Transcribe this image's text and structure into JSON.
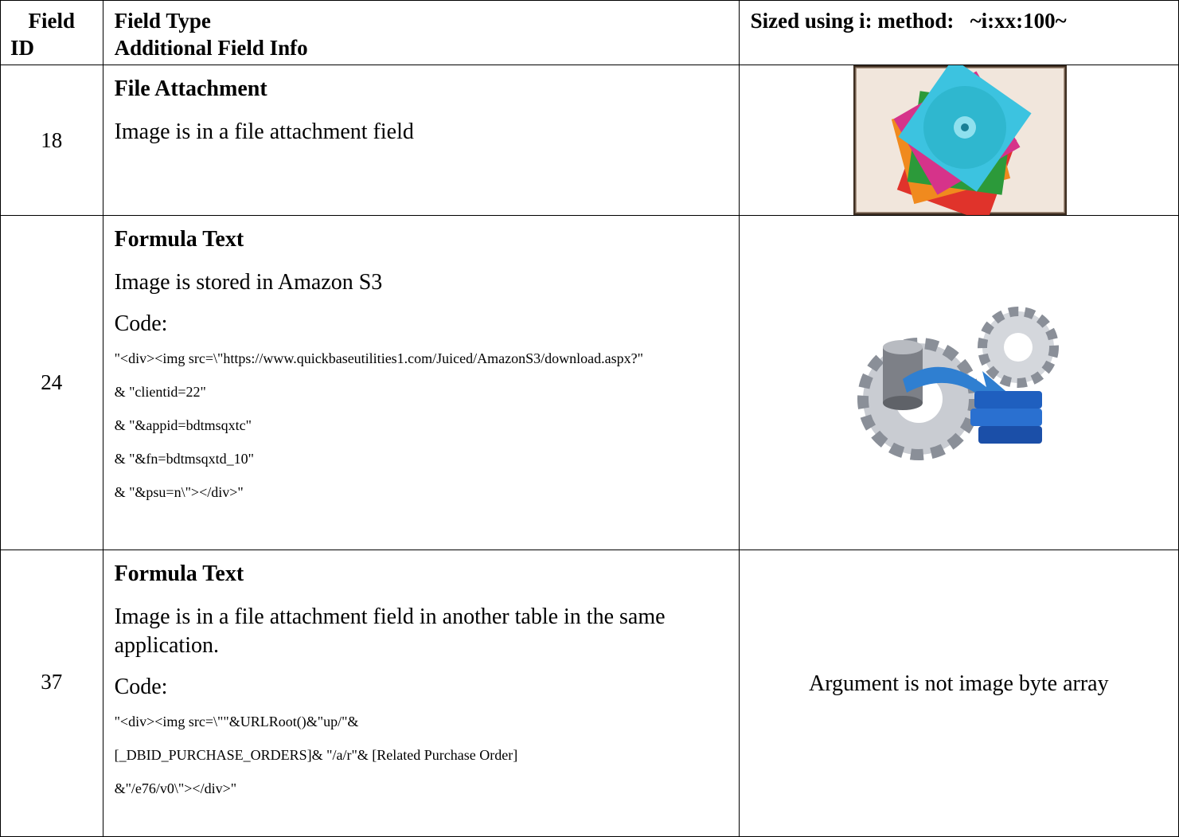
{
  "header": {
    "field_id": [
      "Field",
      "ID"
    ],
    "field_type": [
      "Field Type",
      "Additional Field Info"
    ],
    "sized": "Sized using i: method:   ~i:xx:100~"
  },
  "rows": [
    {
      "id": "18",
      "type": "File Attachment",
      "description": "Image is in a file attachment field"
    },
    {
      "id": "24",
      "type": "Formula Text",
      "description": "Image is stored in Amazon S3",
      "code_label": "Code:",
      "code": [
        "\"<div><img src=\\\"https://www.quickbaseutilities1.com/Juiced/AmazonS3/download.aspx?\"",
        "& \"clientid=22\"",
        "& \"&appid=bdtmsqxtc\"",
        "& \"&fn=bdtmsqxtd_10\"",
        "& \"&psu=n\\\"></div>\""
      ]
    },
    {
      "id": "37",
      "type": "Formula Text",
      "description": "Image is in a file attachment field in another table in the same application.",
      "code_label": "Code:",
      "code": [
        "\"<div><img src=\\\"\"&URLRoot()&\"up/\"&",
        "[_DBID_PURCHASE_ORDERS]& \"/a/r\"& [Related Purchase Order]",
        "&\"/e76/v0\\\"></div>\""
      ],
      "result": "Argument is not image byte array"
    }
  ]
}
